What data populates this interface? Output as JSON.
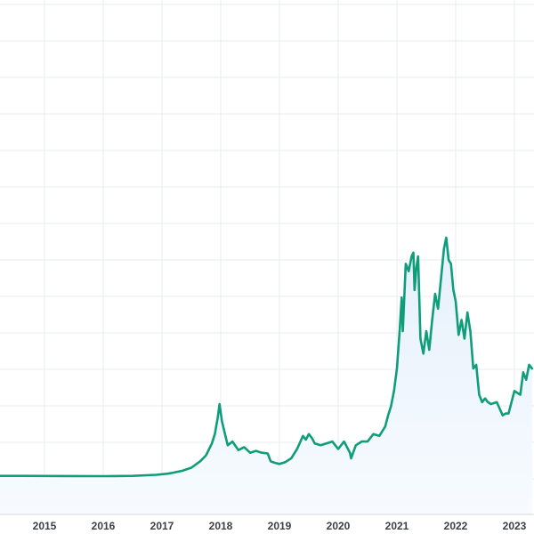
{
  "colors": {
    "line": "#0f9d7a",
    "area_top": "#e6f0fb",
    "area_bottom": "#f7fbff",
    "grid": "#e9ebee",
    "axis": "#d0d4d9"
  },
  "chart_data": {
    "type": "area",
    "title": "",
    "xlabel": "",
    "ylabel": "",
    "x_ticks": [
      "2015",
      "2016",
      "2017",
      "2018",
      "2019",
      "2020",
      "2021",
      "2022",
      "2023"
    ],
    "grid": true,
    "series": [
      {
        "x": [
          2014.2,
          2014.6,
          2015.0,
          2015.5,
          2016.0,
          2016.5,
          2016.9,
          2017.1,
          2017.2,
          2017.35,
          2017.5,
          2017.65,
          2017.75,
          2017.85,
          2017.9,
          2017.95,
          2017.98,
          2018.02,
          2018.08,
          2018.12,
          2018.2,
          2018.3,
          2018.4,
          2018.5,
          2018.6,
          2018.7,
          2018.8,
          2018.85,
          2018.92,
          2019.0,
          2019.1,
          2019.2,
          2019.3,
          2019.4,
          2019.45,
          2019.5,
          2019.55,
          2019.6,
          2019.7,
          2019.8,
          2019.9,
          2020.0,
          2020.1,
          2020.2,
          2020.22,
          2020.3,
          2020.4,
          2020.5,
          2020.6,
          2020.7,
          2020.8,
          2020.85,
          2020.9,
          2020.95,
          2021.0,
          2021.05,
          2021.08,
          2021.1,
          2021.15,
          2021.2,
          2021.25,
          2021.28,
          2021.3,
          2021.33,
          2021.36,
          2021.4,
          2021.45,
          2021.5,
          2021.55,
          2021.6,
          2021.65,
          2021.7,
          2021.75,
          2021.8,
          2021.84,
          2021.88,
          2021.92,
          2021.96,
          2022.0,
          2022.05,
          2022.1,
          2022.15,
          2022.2,
          2022.25,
          2022.3,
          2022.35,
          2022.4,
          2022.45,
          2022.5,
          2022.55,
          2022.6,
          2022.7,
          2022.8,
          2022.85,
          2022.9,
          2023.0,
          2023.1,
          2023.15,
          2023.2,
          2023.25,
          2023.3
        ],
        "values": [
          320,
          300,
          280,
          260,
          230,
          300,
          600,
          900,
          1200,
          1700,
          2500,
          4200,
          5800,
          9000,
          11500,
          16000,
          19500,
          15000,
          11000,
          8500,
          9500,
          7200,
          8000,
          6500,
          7000,
          6500,
          6300,
          4200,
          3800,
          3500,
          4000,
          5000,
          7500,
          11000,
          10000,
          11500,
          10500,
          9000,
          8500,
          9000,
          9500,
          7500,
          9500,
          6500,
          5000,
          8500,
          9500,
          9500,
          11500,
          11000,
          13500,
          16500,
          19000,
          23000,
          29000,
          40000,
          48000,
          39000,
          57000,
          55000,
          59000,
          60000,
          50000,
          56000,
          59000,
          37000,
          33000,
          39000,
          34000,
          42000,
          49000,
          45000,
          53000,
          61000,
          64000,
          58000,
          57000,
          50000,
          47000,
          38000,
          42000,
          37000,
          44000,
          39000,
          29000,
          30000,
          22000,
          20000,
          21000,
          20000,
          19500,
          20000,
          16500,
          17000,
          17000,
          23000,
          22000,
          28000,
          26000,
          30000,
          29000
        ]
      }
    ],
    "x_range": [
      2014.2,
      2023.3
    ],
    "y_range": [
      0,
      69000
    ]
  }
}
